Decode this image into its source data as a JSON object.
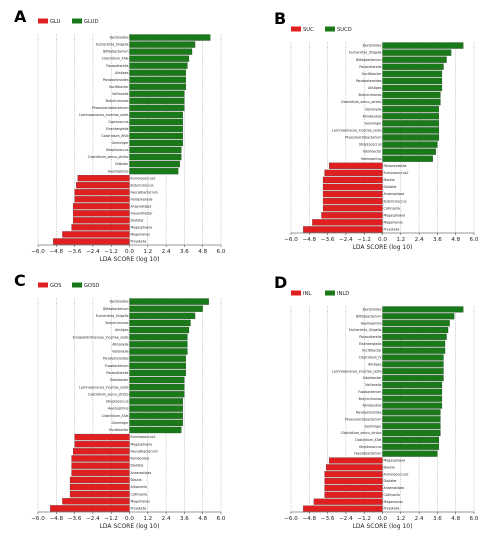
{
  "colors": {
    "positive": "#1a7a1a",
    "negative": "#e02020"
  },
  "panel_labels": [
    "A",
    "B",
    "C",
    "D"
  ],
  "chart_data": [
    {
      "type": "bar",
      "orientation": "horizontal",
      "legend": [
        "GLU",
        "GLUD"
      ],
      "xlabel": "LDA SCORE (log 10)",
      "xticks": [
        "−6.0",
        "−4.8",
        "−3.6",
        "−2.4",
        "−1.2",
        "0.0",
        "1.2",
        "2.4",
        "3.6",
        "4.8",
        "6.0"
      ],
      "xlim": [
        -6.0,
        6.0
      ],
      "grid": true,
      "bars": [
        {
          "label": "Bacteroides",
          "value": 5.3
        },
        {
          "label": "Escherichia_Shigella",
          "value": 4.3
        },
        {
          "label": "Bifidobacterium",
          "value": 4.1
        },
        {
          "label": "Clostridium_XlVa",
          "value": 3.9
        },
        {
          "label": "Parasutterella",
          "value": 3.8
        },
        {
          "label": "Alistipes",
          "value": 3.7
        },
        {
          "label": "Parabacteroides",
          "value": 3.7
        },
        {
          "label": "Oscillibacter",
          "value": 3.7
        },
        {
          "label": "Veillonella",
          "value": 3.6
        },
        {
          "label": "Butyricimonas",
          "value": 3.6
        },
        {
          "label": "Phascolarctobacterium",
          "value": 3.6
        },
        {
          "label": "Lachnospiracea_incertae_sedis",
          "value": 3.5
        },
        {
          "label": "Coprococcus",
          "value": 3.5
        },
        {
          "label": "Eisenbergiella",
          "value": 3.5
        },
        {
          "label": "Clostridium_XlVb",
          "value": 3.5
        },
        {
          "label": "Gemmiger",
          "value": 3.5
        },
        {
          "label": "Streptococcus",
          "value": 3.4
        },
        {
          "label": "Clostridium_sensu_stricto",
          "value": 3.4
        },
        {
          "label": "Dialister",
          "value": 3.3
        },
        {
          "label": "Haemophilus",
          "value": 3.2
        },
        {
          "label": "Ruminococcus2",
          "value": -3.4
        },
        {
          "label": "Butyricicoccus",
          "value": -3.5
        },
        {
          "label": "Faecalibacterium",
          "value": -3.6
        },
        {
          "label": "Holdemanella",
          "value": -3.6
        },
        {
          "label": "Anaerostipes",
          "value": -3.7
        },
        {
          "label": "Flavonifractor",
          "value": -3.7
        },
        {
          "label": "Dialister",
          "value": -3.7
        },
        {
          "label": "Megasphaera",
          "value": -3.8
        },
        {
          "label": "Megamonas",
          "value": -4.4
        },
        {
          "label": "Prevotella",
          "value": -5.0
        }
      ]
    },
    {
      "type": "bar",
      "orientation": "horizontal",
      "legend": [
        "SUC",
        "SUCD"
      ],
      "xlabel": "LDA SCORE (log 10)",
      "xticks": [
        "−6.0",
        "−4.8",
        "−3.6",
        "−2.4",
        "−1.2",
        "0.0",
        "1.2",
        "2.4",
        "3.6",
        "4.8",
        "6.0"
      ],
      "xlim": [
        -6.0,
        6.0
      ],
      "grid": true,
      "bars": [
        {
          "label": "Bacteroides",
          "value": 5.3
        },
        {
          "label": "Escherichia_Shigella",
          "value": 4.5
        },
        {
          "label": "Bifidobacterium",
          "value": 4.2
        },
        {
          "label": "Parasutterella",
          "value": 4.0
        },
        {
          "label": "Oscillibacter",
          "value": 3.9
        },
        {
          "label": "Parabacteroides",
          "value": 3.9
        },
        {
          "label": "Alistipes",
          "value": 3.9
        },
        {
          "label": "Butyricimonas",
          "value": 3.8
        },
        {
          "label": "Clostridium_sensu_stricto",
          "value": 3.8
        },
        {
          "label": "Veillonella",
          "value": 3.7
        },
        {
          "label": "Romboutsia",
          "value": 3.7
        },
        {
          "label": "Gemmiger",
          "value": 3.7
        },
        {
          "label": "Lachnospiracea_incertae_sedis",
          "value": 3.7
        },
        {
          "label": "Phascolarctobacterium",
          "value": 3.7
        },
        {
          "label": "Streptococcus",
          "value": 3.6
        },
        {
          "label": "Odoribacter",
          "value": 3.5
        },
        {
          "label": "Haemophilus",
          "value": 3.3
        },
        {
          "label": "Paraprevotella",
          "value": -3.5
        },
        {
          "label": "Ruminococcus2",
          "value": -3.8
        },
        {
          "label": "Blautia",
          "value": -3.9
        },
        {
          "label": "Dialister",
          "value": -3.9
        },
        {
          "label": "Anaerostipes",
          "value": -3.9
        },
        {
          "label": "Butyricicoccus",
          "value": -3.9
        },
        {
          "label": "Collinsella",
          "value": -3.9
        },
        {
          "label": "Megasphaera",
          "value": -4.0
        },
        {
          "label": "Megamonas",
          "value": -4.6
        },
        {
          "label": "Prevotella",
          "value": -5.2
        }
      ]
    },
    {
      "type": "bar",
      "orientation": "horizontal",
      "legend": [
        "GOS",
        "GOSD"
      ],
      "xlabel": "LDA SCORE (log 10)",
      "xticks": [
        "−6.0",
        "−4.8",
        "−3.6",
        "−2.4",
        "−1.2",
        "0.0",
        "1.2",
        "2.4",
        "3.6",
        "4.8",
        "6.0"
      ],
      "xlim": [
        -6.0,
        6.0
      ],
      "grid": true,
      "bars": [
        {
          "label": "Bacteroides",
          "value": 5.2
        },
        {
          "label": "Bifidobacterium",
          "value": 4.8
        },
        {
          "label": "Escherichia_Shigella",
          "value": 4.3
        },
        {
          "label": "Butyricimonas",
          "value": 4.0
        },
        {
          "label": "Alistipes",
          "value": 3.9
        },
        {
          "label": "Erysipelotrichaceae_incertae_sedis",
          "value": 3.8
        },
        {
          "label": "Allisonella",
          "value": 3.8
        },
        {
          "label": "Veillonella",
          "value": 3.8
        },
        {
          "label": "Parabacteroides",
          "value": 3.7
        },
        {
          "label": "Fusobacterium",
          "value": 3.7
        },
        {
          "label": "Parasutterella",
          "value": 3.7
        },
        {
          "label": "Odoribacter",
          "value": 3.6
        },
        {
          "label": "Lachnospiracea_incertae_sedis",
          "value": 3.6
        },
        {
          "label": "Clostridium_sensu_stricto",
          "value": 3.6
        },
        {
          "label": "Streptococcus",
          "value": 3.5
        },
        {
          "label": "Haemophilus",
          "value": 3.5
        },
        {
          "label": "Clostridium_XlVa",
          "value": 3.5
        },
        {
          "label": "Gemmiger",
          "value": 3.5
        },
        {
          "label": "Oscillibacter",
          "value": 3.4
        },
        {
          "label": "Ruminococcus2",
          "value": -3.6
        },
        {
          "label": "Megasphaera",
          "value": -3.6
        },
        {
          "label": "Faecalibacterium",
          "value": -3.7
        },
        {
          "label": "Romboutsia",
          "value": -3.8
        },
        {
          "label": "Dialister",
          "value": -3.8
        },
        {
          "label": "Anaerostipes",
          "value": -3.8
        },
        {
          "label": "Blautia",
          "value": -3.9
        },
        {
          "label": "Allisonella",
          "value": -3.9
        },
        {
          "label": "Collinsella",
          "value": -3.9
        },
        {
          "label": "Megamonas",
          "value": -4.4
        },
        {
          "label": "Prevotella",
          "value": -5.2
        }
      ]
    },
    {
      "type": "bar",
      "orientation": "horizontal",
      "legend": [
        "INL",
        "INLD"
      ],
      "xlabel": "LDA SCORE (log 10)",
      "xticks": [
        "−6.0",
        "−4.8",
        "−3.6",
        "−2.4",
        "−1.2",
        "0.0",
        "1.2",
        "2.4",
        "3.6",
        "4.8",
        "6.0"
      ],
      "xlim": [
        -6.0,
        6.0
      ],
      "grid": true,
      "bars": [
        {
          "label": "Bacteroides",
          "value": 5.3
        },
        {
          "label": "Bifidobacterium",
          "value": 4.7
        },
        {
          "label": "Haemophilus",
          "value": 4.4
        },
        {
          "label": "Escherichia_Shigella",
          "value": 4.3
        },
        {
          "label": "Parasutterella",
          "value": 4.2
        },
        {
          "label": "Eisenbergiella",
          "value": 4.1
        },
        {
          "label": "Oscillibacter",
          "value": 4.1
        },
        {
          "label": "Clostridium_IV",
          "value": 4.0
        },
        {
          "label": "Alistipes",
          "value": 4.0
        },
        {
          "label": "Lachnospiracea_incertae_sedis",
          "value": 4.0
        },
        {
          "label": "Odoribacter",
          "value": 4.0
        },
        {
          "label": "Veillonella",
          "value": 3.9
        },
        {
          "label": "Fusobacterium",
          "value": 3.9
        },
        {
          "label": "Butyricimonas",
          "value": 3.9
        },
        {
          "label": "Romboutsia",
          "value": 3.9
        },
        {
          "label": "Parabacteroides",
          "value": 3.8
        },
        {
          "label": "Phascolarctobacterium",
          "value": 3.8
        },
        {
          "label": "Gemmiger",
          "value": 3.8
        },
        {
          "label": "Clostridium_sensu_stricto",
          "value": 3.8
        },
        {
          "label": "Clostridium_XlVa",
          "value": 3.7
        },
        {
          "label": "Streptococcus",
          "value": 3.7
        },
        {
          "label": "Faecalibacterium",
          "value": 3.6
        },
        {
          "label": "Megasphaera",
          "value": -3.5
        },
        {
          "label": "Blautia",
          "value": -3.7
        },
        {
          "label": "Ruminococcus2",
          "value": -3.8
        },
        {
          "label": "Dialister",
          "value": -3.8
        },
        {
          "label": "Anaerostipes",
          "value": -3.8
        },
        {
          "label": "Collinsella",
          "value": -3.8
        },
        {
          "label": "Megamonas",
          "value": -4.5
        },
        {
          "label": "Prevotella",
          "value": -5.2
        }
      ]
    }
  ]
}
